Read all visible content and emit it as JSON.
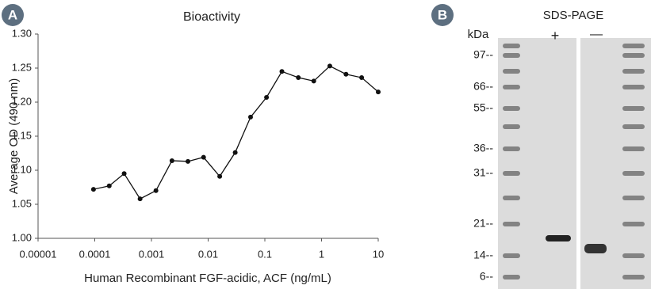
{
  "chart_data": {
    "type": "line",
    "title": "Bioactivity",
    "x_label": "Human Recombinant FGF-acidic, ACF (ng/mL)",
    "y_label": "Average OD (490 nm)",
    "x_scale": "log",
    "x": [
      9.5e-05,
      0.00018,
      0.00033,
      0.00063,
      0.0012,
      0.0023,
      0.0044,
      0.0083,
      0.016,
      0.03,
      0.056,
      0.107,
      0.2,
      0.39,
      0.73,
      1.4,
      2.7,
      5.1,
      10
    ],
    "series": [
      {
        "name": "Bioactivity",
        "color": "#111111",
        "values": [
          1.072,
          1.077,
          1.095,
          1.058,
          1.07,
          1.114,
          1.113,
          1.119,
          1.091,
          1.126,
          1.178,
          1.207,
          1.245,
          1.236,
          1.231,
          1.253,
          1.241,
          1.236,
          1.215
        ]
      }
    ],
    "xlim": [
      1e-05,
      10
    ],
    "xticks": [
      1e-05,
      0.0001,
      0.001,
      0.01,
      0.1,
      1,
      10
    ],
    "ylim": [
      1.0,
      1.3
    ],
    "yticks": [
      {
        "value": 1.0,
        "label": "1.00"
      },
      {
        "value": 1.05,
        "label": "1.05"
      },
      {
        "value": 1.1,
        "label": "1.10"
      },
      {
        "value": 1.15,
        "label": "1.15"
      },
      {
        "value": 1.2,
        "label": "1.20"
      },
      {
        "value": 1.25,
        "label": "1.25"
      },
      {
        "value": 1.3,
        "label": "1.30"
      }
    ],
    "grid": false
  },
  "panel_labels": [
    "A",
    "B"
  ],
  "gel": {
    "title": "SDS-PAGE",
    "unit_label": "kDa",
    "lanes": [
      "+",
      "—"
    ],
    "markers": [
      "97--",
      "66--",
      "55--",
      "36--",
      "31--",
      "21--",
      "14--",
      "6--"
    ]
  }
}
